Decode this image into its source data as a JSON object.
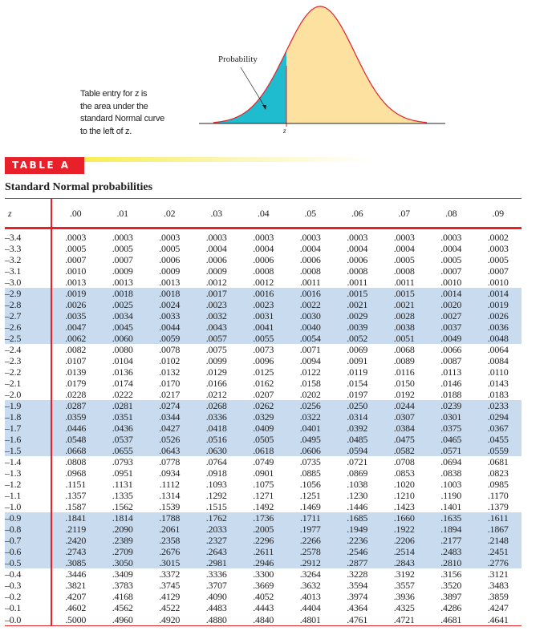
{
  "figure": {
    "probability_label": "Probability",
    "z_label": "z",
    "caption_lines": [
      "Table entry for z is",
      "the area under the",
      "standard Normal curve",
      "to the left of z."
    ],
    "colors": {
      "shaded_area": "#1fbcd0",
      "curve_fill": "#fde1a1",
      "curve_line": "#e8202a"
    }
  },
  "banner": {
    "label": "TABLE A",
    "color": "#e8202a"
  },
  "title": "Standard Normal probabilities",
  "table": {
    "z_header": "z",
    "columns": [
      ".00",
      ".01",
      ".02",
      ".03",
      ".04",
      ".05",
      ".06",
      ".07",
      ".08",
      ".09"
    ],
    "shaded_rows": [
      "–2.9",
      "–2.8",
      "–2.7",
      "–2.6",
      "–2.5",
      "–1.9",
      "–1.8",
      "–1.7",
      "–1.6",
      "–1.5",
      "–0.9",
      "–0.8",
      "–0.7",
      "–0.6",
      "–0.5"
    ],
    "rows": [
      {
        "z": "–3.4",
        "v": [
          ".0003",
          ".0003",
          ".0003",
          ".0003",
          ".0003",
          ".0003",
          ".0003",
          ".0003",
          ".0003",
          ".0002"
        ]
      },
      {
        "z": "–3.3",
        "v": [
          ".0005",
          ".0005",
          ".0005",
          ".0004",
          ".0004",
          ".0004",
          ".0004",
          ".0004",
          ".0004",
          ".0003"
        ]
      },
      {
        "z": "–3.2",
        "v": [
          ".0007",
          ".0007",
          ".0006",
          ".0006",
          ".0006",
          ".0006",
          ".0006",
          ".0005",
          ".0005",
          ".0005"
        ]
      },
      {
        "z": "–3.1",
        "v": [
          ".0010",
          ".0009",
          ".0009",
          ".0009",
          ".0008",
          ".0008",
          ".0008",
          ".0008",
          ".0007",
          ".0007"
        ]
      },
      {
        "z": "–3.0",
        "v": [
          ".0013",
          ".0013",
          ".0013",
          ".0012",
          ".0012",
          ".0011",
          ".0011",
          ".0011",
          ".0010",
          ".0010"
        ]
      },
      {
        "z": "–2.9",
        "v": [
          ".0019",
          ".0018",
          ".0018",
          ".0017",
          ".0016",
          ".0016",
          ".0015",
          ".0015",
          ".0014",
          ".0014"
        ]
      },
      {
        "z": "–2.8",
        "v": [
          ".0026",
          ".0025",
          ".0024",
          ".0023",
          ".0023",
          ".0022",
          ".0021",
          ".0021",
          ".0020",
          ".0019"
        ]
      },
      {
        "z": "–2.7",
        "v": [
          ".0035",
          ".0034",
          ".0033",
          ".0032",
          ".0031",
          ".0030",
          ".0029",
          ".0028",
          ".0027",
          ".0026"
        ]
      },
      {
        "z": "–2.6",
        "v": [
          ".0047",
          ".0045",
          ".0044",
          ".0043",
          ".0041",
          ".0040",
          ".0039",
          ".0038",
          ".0037",
          ".0036"
        ]
      },
      {
        "z": "–2.5",
        "v": [
          ".0062",
          ".0060",
          ".0059",
          ".0057",
          ".0055",
          ".0054",
          ".0052",
          ".0051",
          ".0049",
          ".0048"
        ]
      },
      {
        "z": "–2.4",
        "v": [
          ".0082",
          ".0080",
          ".0078",
          ".0075",
          ".0073",
          ".0071",
          ".0069",
          ".0068",
          ".0066",
          ".0064"
        ]
      },
      {
        "z": "–2.3",
        "v": [
          ".0107",
          ".0104",
          ".0102",
          ".0099",
          ".0096",
          ".0094",
          ".0091",
          ".0089",
          ".0087",
          ".0084"
        ]
      },
      {
        "z": "–2.2",
        "v": [
          ".0139",
          ".0136",
          ".0132",
          ".0129",
          ".0125",
          ".0122",
          ".0119",
          ".0116",
          ".0113",
          ".0110"
        ]
      },
      {
        "z": "–2.1",
        "v": [
          ".0179",
          ".0174",
          ".0170",
          ".0166",
          ".0162",
          ".0158",
          ".0154",
          ".0150",
          ".0146",
          ".0143"
        ]
      },
      {
        "z": "–2.0",
        "v": [
          ".0228",
          ".0222",
          ".0217",
          ".0212",
          ".0207",
          ".0202",
          ".0197",
          ".0192",
          ".0188",
          ".0183"
        ]
      },
      {
        "z": "–1.9",
        "v": [
          ".0287",
          ".0281",
          ".0274",
          ".0268",
          ".0262",
          ".0256",
          ".0250",
          ".0244",
          ".0239",
          ".0233"
        ]
      },
      {
        "z": "–1.8",
        "v": [
          ".0359",
          ".0351",
          ".0344",
          ".0336",
          ".0329",
          ".0322",
          ".0314",
          ".0307",
          ".0301",
          ".0294"
        ]
      },
      {
        "z": "–1.7",
        "v": [
          ".0446",
          ".0436",
          ".0427",
          ".0418",
          ".0409",
          ".0401",
          ".0392",
          ".0384",
          ".0375",
          ".0367"
        ]
      },
      {
        "z": "–1.6",
        "v": [
          ".0548",
          ".0537",
          ".0526",
          ".0516",
          ".0505",
          ".0495",
          ".0485",
          ".0475",
          ".0465",
          ".0455"
        ]
      },
      {
        "z": "–1.5",
        "v": [
          ".0668",
          ".0655",
          ".0643",
          ".0630",
          ".0618",
          ".0606",
          ".0594",
          ".0582",
          ".0571",
          ".0559"
        ]
      },
      {
        "z": "–1.4",
        "v": [
          ".0808",
          ".0793",
          ".0778",
          ".0764",
          ".0749",
          ".0735",
          ".0721",
          ".0708",
          ".0694",
          ".0681"
        ]
      },
      {
        "z": "–1.3",
        "v": [
          ".0968",
          ".0951",
          ".0934",
          ".0918",
          ".0901",
          ".0885",
          ".0869",
          ".0853",
          ".0838",
          ".0823"
        ]
      },
      {
        "z": "–1.2",
        "v": [
          ".1151",
          ".1131",
          ".1112",
          ".1093",
          ".1075",
          ".1056",
          ".1038",
          ".1020",
          ".1003",
          ".0985"
        ]
      },
      {
        "z": "–1.1",
        "v": [
          ".1357",
          ".1335",
          ".1314",
          ".1292",
          ".1271",
          ".1251",
          ".1230",
          ".1210",
          ".1190",
          ".1170"
        ]
      },
      {
        "z": "–1.0",
        "v": [
          ".1587",
          ".1562",
          ".1539",
          ".1515",
          ".1492",
          ".1469",
          ".1446",
          ".1423",
          ".1401",
          ".1379"
        ]
      },
      {
        "z": "–0.9",
        "v": [
          ".1841",
          ".1814",
          ".1788",
          ".1762",
          ".1736",
          ".1711",
          ".1685",
          ".1660",
          ".1635",
          ".1611"
        ]
      },
      {
        "z": "–0.8",
        "v": [
          ".2119",
          ".2090",
          ".2061",
          ".2033",
          ".2005",
          ".1977",
          ".1949",
          ".1922",
          ".1894",
          ".1867"
        ]
      },
      {
        "z": "–0.7",
        "v": [
          ".2420",
          ".2389",
          ".2358",
          ".2327",
          ".2296",
          ".2266",
          ".2236",
          ".2206",
          ".2177",
          ".2148"
        ]
      },
      {
        "z": "–0.6",
        "v": [
          ".2743",
          ".2709",
          ".2676",
          ".2643",
          ".2611",
          ".2578",
          ".2546",
          ".2514",
          ".2483",
          ".2451"
        ]
      },
      {
        "z": "–0.5",
        "v": [
          ".3085",
          ".3050",
          ".3015",
          ".2981",
          ".2946",
          ".2912",
          ".2877",
          ".2843",
          ".2810",
          ".2776"
        ]
      },
      {
        "z": "–0.4",
        "v": [
          ".3446",
          ".3409",
          ".3372",
          ".3336",
          ".3300",
          ".3264",
          ".3228",
          ".3192",
          ".3156",
          ".3121"
        ]
      },
      {
        "z": "–0.3",
        "v": [
          ".3821",
          ".3783",
          ".3745",
          ".3707",
          ".3669",
          ".3632",
          ".3594",
          ".3557",
          ".3520",
          ".3483"
        ]
      },
      {
        "z": "–0.2",
        "v": [
          ".4207",
          ".4168",
          ".4129",
          ".4090",
          ".4052",
          ".4013",
          ".3974",
          ".3936",
          ".3897",
          ".3859"
        ]
      },
      {
        "z": "–0.1",
        "v": [
          ".4602",
          ".4562",
          ".4522",
          ".4483",
          ".4443",
          ".4404",
          ".4364",
          ".4325",
          ".4286",
          ".4247"
        ]
      },
      {
        "z": "–0.0",
        "v": [
          ".5000",
          ".4960",
          ".4920",
          ".4880",
          ".4840",
          ".4801",
          ".4761",
          ".4721",
          ".4681",
          ".4641"
        ]
      }
    ]
  }
}
